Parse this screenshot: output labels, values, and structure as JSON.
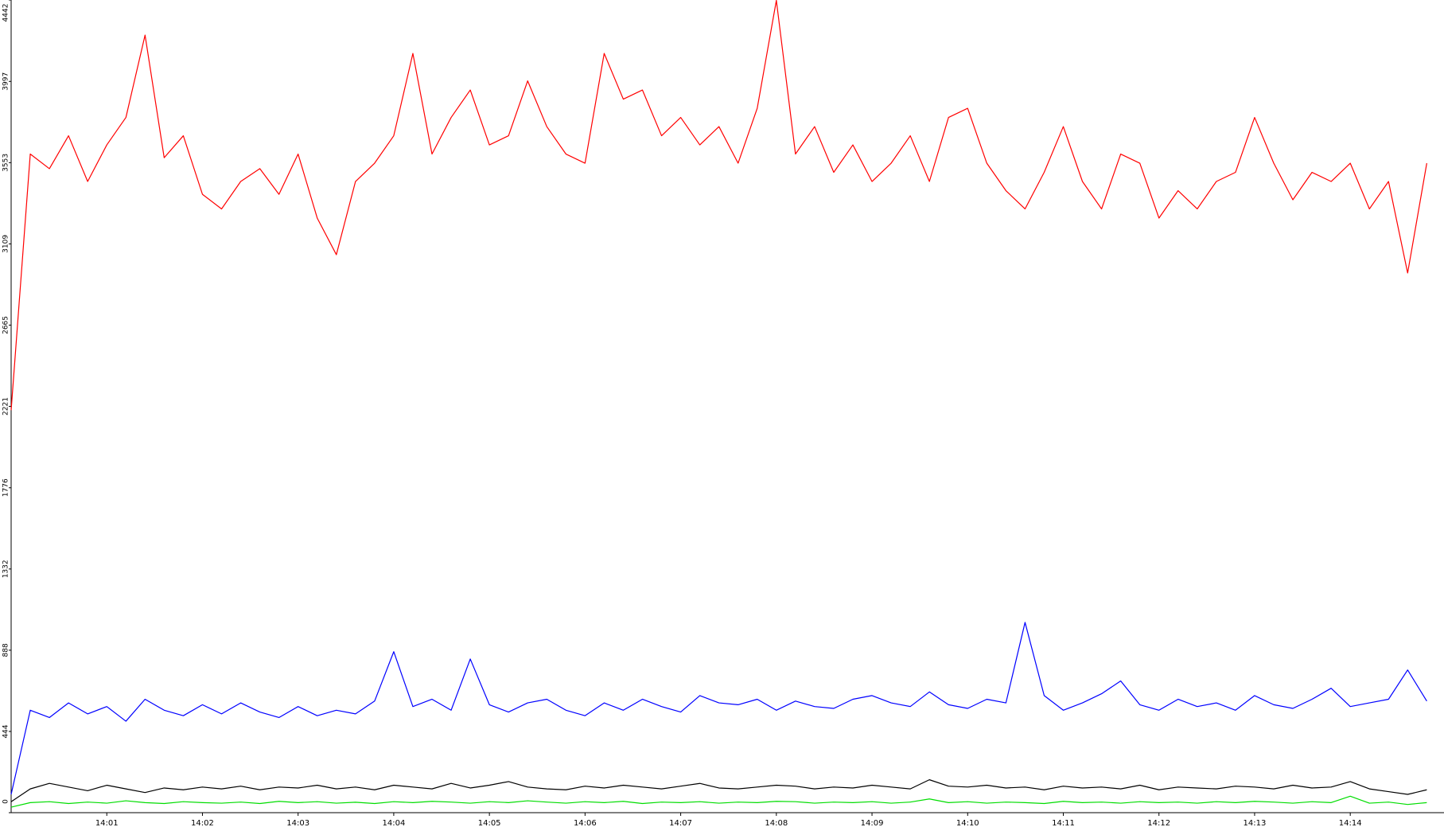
{
  "chart_data": {
    "type": "line",
    "x": [
      0,
      0.2,
      0.4,
      0.6,
      0.8,
      1,
      1.2,
      1.4,
      1.6,
      1.8,
      2,
      2.2,
      2.4,
      2.6,
      2.8,
      3,
      3.2,
      3.4,
      3.6,
      3.8,
      4,
      4.2,
      4.4,
      4.6,
      4.8,
      5,
      5.2,
      5.4,
      5.6,
      5.8,
      6,
      6.2,
      6.4,
      6.6,
      6.8,
      7,
      7.2,
      7.4,
      7.6,
      7.8,
      8,
      8.2,
      8.4,
      8.6,
      8.8,
      9,
      9.2,
      9.4,
      9.6,
      9.8,
      10,
      10.2,
      10.4,
      10.6,
      10.8,
      11,
      11.2,
      11.4,
      11.6,
      11.8,
      12,
      12.2,
      12.4,
      12.6,
      12.8,
      13,
      13.2,
      13.4,
      13.6,
      13.8,
      14,
      14.2,
      14.4,
      14.6,
      14.8
    ],
    "series": [
      {
        "color": "#ff0000",
        "values": [
          2200,
          3600,
          3520,
          3700,
          3450,
          3650,
          3800,
          4250,
          3580,
          3700,
          3380,
          3300,
          3450,
          3520,
          3380,
          3600,
          3250,
          3050,
          3450,
          3550,
          3700,
          4150,
          3600,
          3800,
          3950,
          3650,
          3700,
          4000,
          3750,
          3600,
          3550,
          4150,
          3900,
          3950,
          3700,
          3800,
          3650,
          3750,
          3550,
          3850,
          4440,
          3600,
          3750,
          3500,
          3650,
          3450,
          3550,
          3700,
          3450,
          3800,
          3850,
          3550,
          3400,
          3300,
          3500,
          3750,
          3450,
          3300,
          3600,
          3550,
          3250,
          3400,
          3300,
          3450,
          3500,
          3800,
          3550,
          3350,
          3500,
          3450,
          3550,
          3300,
          3450,
          2950,
          3550
        ]
      },
      {
        "color": "#0000ff",
        "values": [
          100,
          560,
          520,
          600,
          540,
          580,
          500,
          620,
          560,
          530,
          590,
          540,
          600,
          550,
          520,
          580,
          530,
          560,
          540,
          610,
          880,
          580,
          620,
          560,
          840,
          590,
          550,
          600,
          620,
          560,
          530,
          600,
          560,
          620,
          580,
          550,
          640,
          600,
          590,
          620,
          560,
          610,
          580,
          570,
          620,
          640,
          600,
          580,
          660,
          590,
          570,
          620,
          600,
          1040,
          640,
          560,
          600,
          650,
          720,
          590,
          560,
          620,
          580,
          600,
          560,
          640,
          590,
          570,
          620,
          680,
          580,
          600,
          620,
          780,
          610
        ]
      },
      {
        "color": "#000000",
        "values": [
          60,
          130,
          160,
          140,
          120,
          150,
          130,
          110,
          135,
          125,
          140,
          130,
          145,
          125,
          140,
          135,
          150,
          130,
          140,
          125,
          150,
          140,
          130,
          160,
          135,
          150,
          170,
          140,
          130,
          125,
          145,
          135,
          150,
          140,
          130,
          145,
          160,
          135,
          130,
          140,
          150,
          145,
          130,
          140,
          135,
          150,
          140,
          130,
          180,
          145,
          140,
          150,
          135,
          140,
          125,
          145,
          135,
          140,
          130,
          150,
          125,
          140,
          135,
          130,
          145,
          140,
          130,
          150,
          135,
          140,
          170,
          130,
          115,
          100,
          125
        ]
      },
      {
        "color": "#00dd00",
        "values": [
          30,
          55,
          60,
          50,
          58,
          52,
          65,
          55,
          50,
          60,
          55,
          52,
          58,
          50,
          62,
          55,
          60,
          52,
          57,
          50,
          60,
          55,
          62,
          58,
          52,
          60,
          55,
          65,
          58,
          52,
          60,
          55,
          62,
          50,
          58,
          55,
          60,
          52,
          58,
          55,
          62,
          60,
          52,
          58,
          55,
          60,
          52,
          58,
          75,
          55,
          60,
          52,
          58,
          55,
          50,
          62,
          55,
          58,
          52,
          60,
          55,
          58,
          52,
          60,
          55,
          62,
          58,
          52,
          60,
          55,
          90,
          52,
          58,
          45,
          55
        ]
      }
    ],
    "xlim": [
      0,
      14.98
    ],
    "xticks": [
      {
        "value": 1,
        "label": "14:01"
      },
      {
        "value": 2,
        "label": "14:02"
      },
      {
        "value": 3,
        "label": "14:03"
      },
      {
        "value": 4,
        "label": "14:04"
      },
      {
        "value": 5,
        "label": "14:05"
      },
      {
        "value": 6,
        "label": "14:06"
      },
      {
        "value": 7,
        "label": "14:07"
      },
      {
        "value": 8,
        "label": "14:08"
      },
      {
        "value": 9,
        "label": "14:09"
      },
      {
        "value": 10,
        "label": "14:10"
      },
      {
        "value": 11,
        "label": "14:11"
      },
      {
        "value": 12,
        "label": "14:12"
      },
      {
        "value": 13,
        "label": "14:13"
      },
      {
        "value": 14,
        "label": "14:14"
      }
    ],
    "ylim": [
      0,
      4442
    ],
    "yticks": [
      0,
      444,
      888,
      1332,
      1776,
      2221,
      2665,
      3109,
      3553,
      3997,
      4442
    ]
  }
}
